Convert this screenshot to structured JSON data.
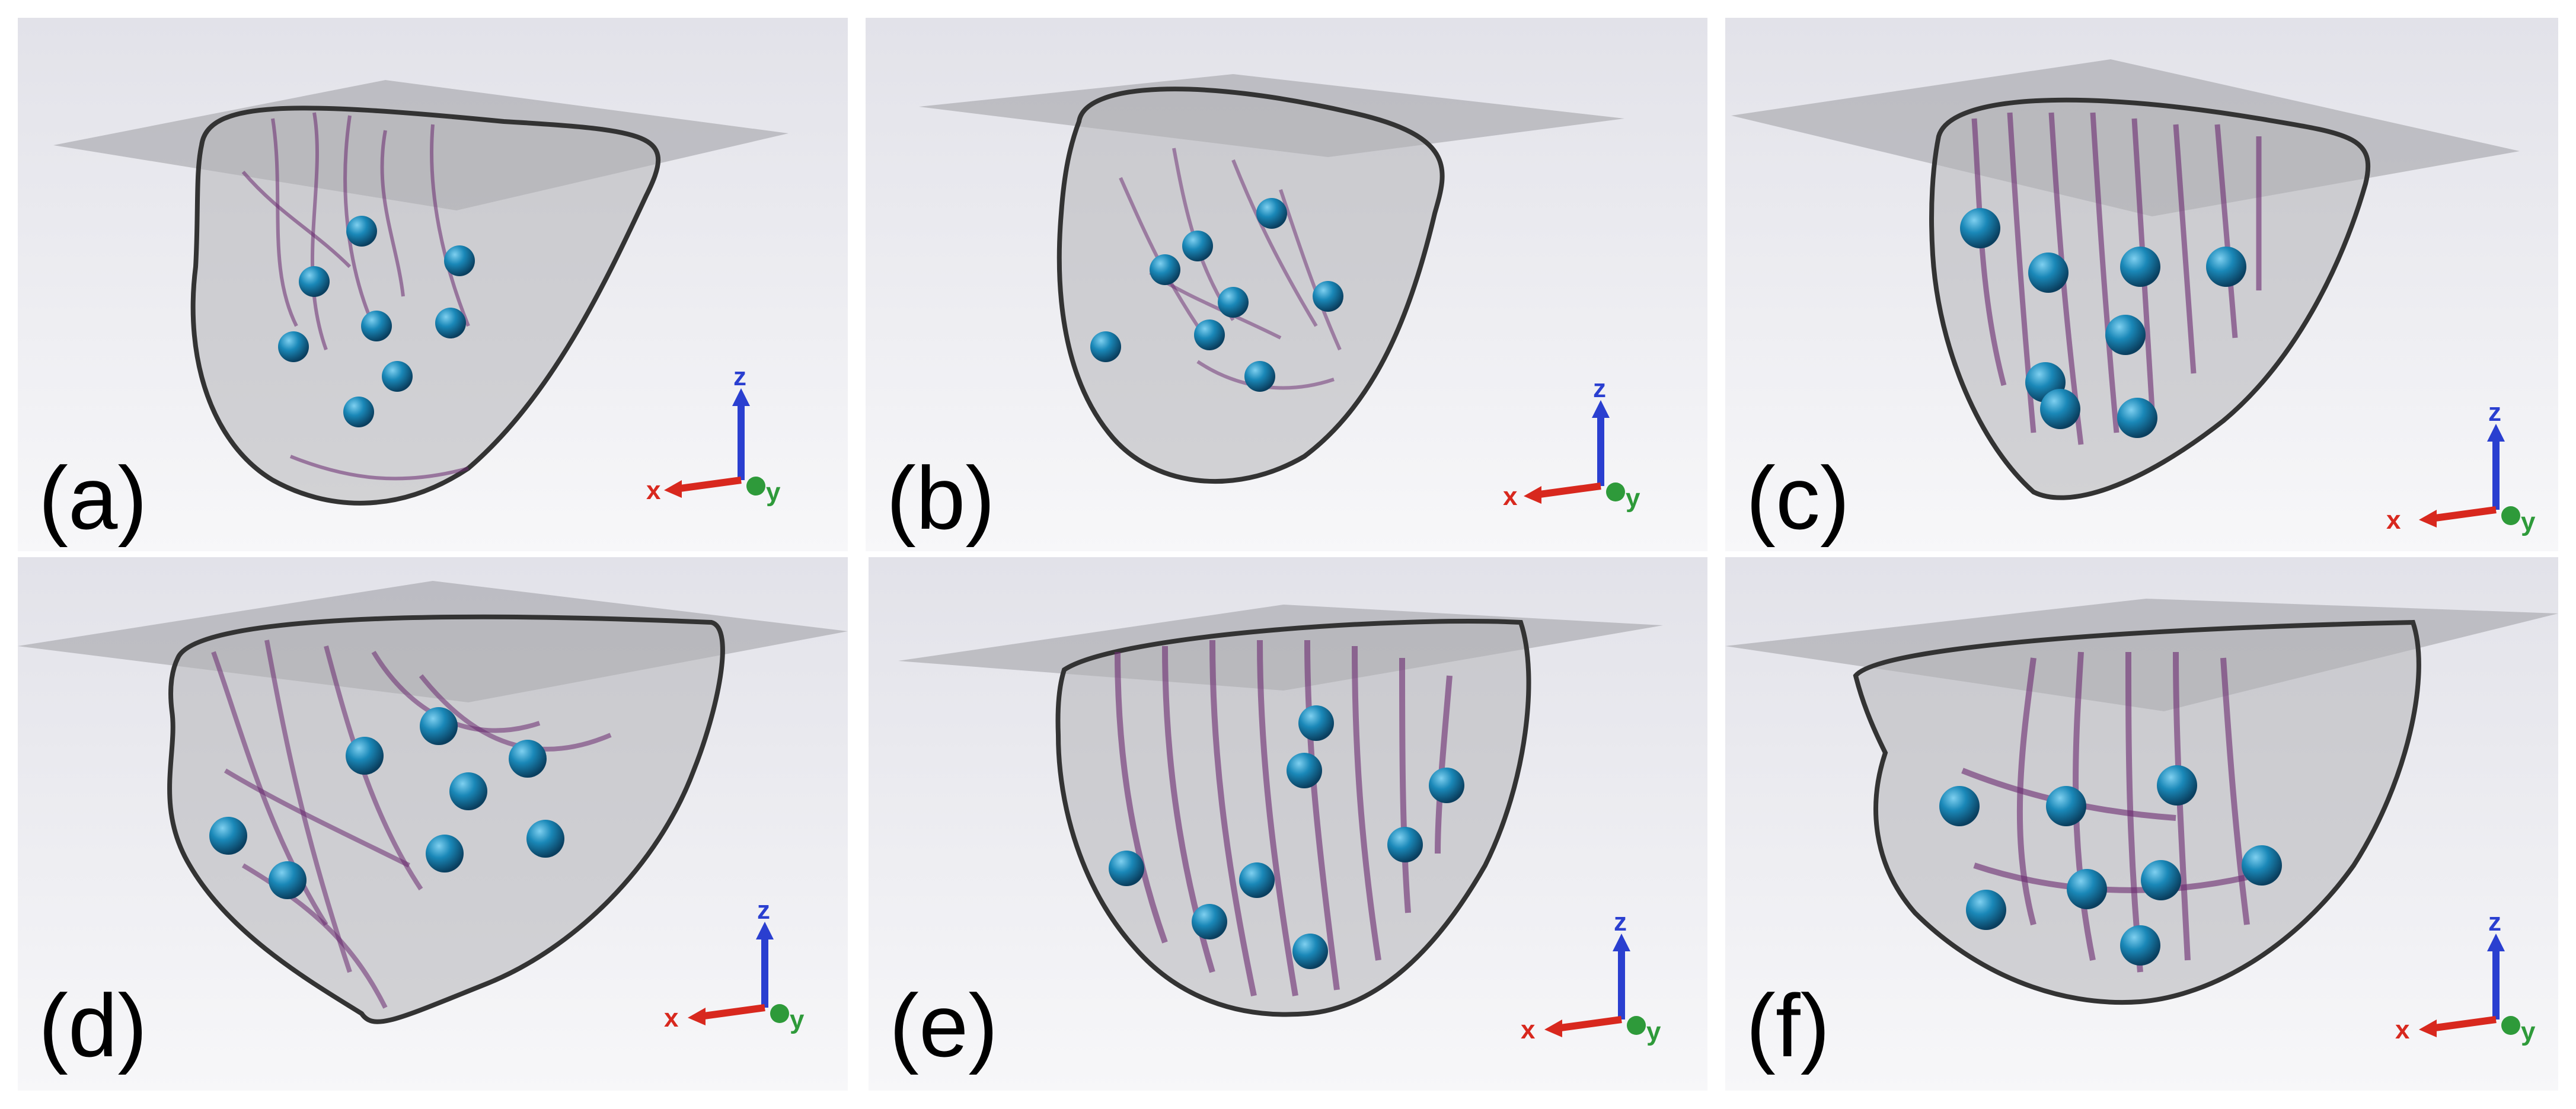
{
  "figure": {
    "panels": [
      {
        "id": "a",
        "label": "(a)",
        "axis": {
          "x": "x",
          "y": "y",
          "z": "z"
        },
        "sphere_count": 8
      },
      {
        "id": "b",
        "label": "(b)",
        "axis": {
          "x": "x",
          "y": "y",
          "z": "z"
        },
        "sphere_count": 8
      },
      {
        "id": "c",
        "label": "(c)",
        "axis": {
          "x": "x",
          "y": "y",
          "z": "z"
        },
        "sphere_count": 8
      },
      {
        "id": "d",
        "label": "(d)",
        "axis": {
          "x": "x",
          "y": "y",
          "z": "z"
        },
        "sphere_count": 8
      },
      {
        "id": "e",
        "label": "(e)",
        "axis": {
          "x": "x",
          "y": "y",
          "z": "z"
        },
        "sphere_count": 8
      },
      {
        "id": "f",
        "label": "(f)",
        "axis": {
          "x": "x",
          "y": "y",
          "z": "z"
        },
        "sphere_count": 8
      }
    ],
    "colors": {
      "background_top": "#e6e6ec",
      "background_bottom": "#f6f6f8",
      "plane": "#a8a8ad",
      "shell_outline": "#3a3a3a",
      "shell_fill": "#b9b9bc",
      "fibers": "#6a2a70",
      "sphere": "#1a88b8",
      "axis_x": "#d8281e",
      "axis_y": "#2e9a3a",
      "axis_z": "#2a3fd0"
    },
    "icons": {
      "axis_triad": "xyz-axis-triad-icon",
      "marker": "sphere-marker-icon"
    }
  }
}
